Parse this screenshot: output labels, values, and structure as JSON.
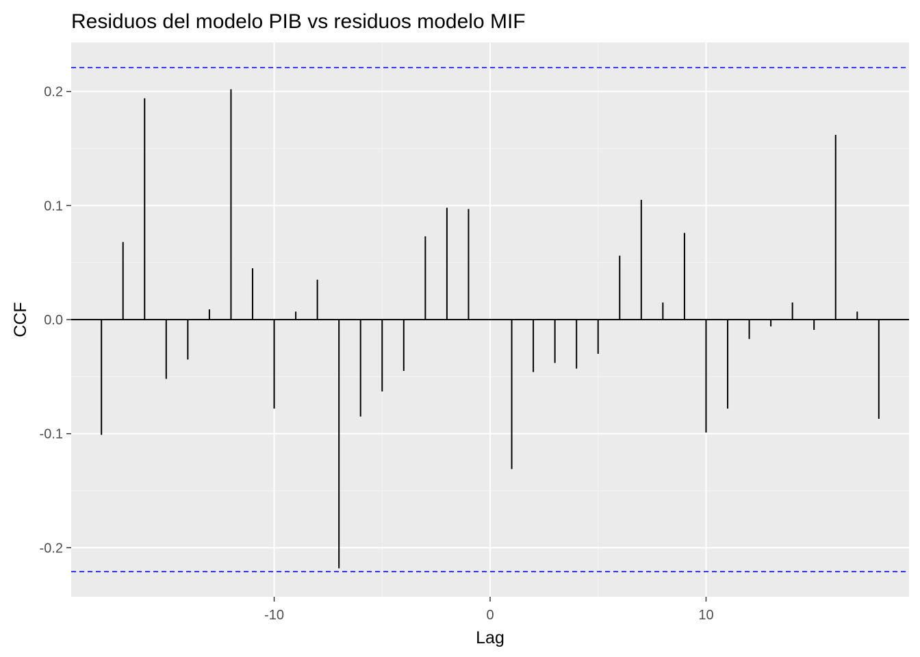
{
  "chart_data": {
    "type": "bar",
    "title": "Residuos del modelo PIB vs residuos modelo MIF",
    "xlabel": "Lag",
    "ylabel": "CCF",
    "xlim": [
      -19.4,
      19.4
    ],
    "ylim": [
      -0.243,
      0.243
    ],
    "x_ticks": [
      -10,
      0,
      10
    ],
    "x_tick_labels": [
      "-10",
      "0",
      "10"
    ],
    "y_ticks": [
      -0.2,
      -0.1,
      0.0,
      0.1,
      0.2
    ],
    "y_tick_labels": [
      "-0.2",
      "-0.1",
      "0.0",
      "0.1",
      "0.2"
    ],
    "confidence_limits": [
      0.221,
      -0.221
    ],
    "grid": true,
    "colors": {
      "panel": "#ebebeb",
      "grid_major": "#ffffff",
      "grid_minor": "#f5f5f5",
      "bars": "#000000",
      "confidence": "#0000ff"
    },
    "lags": [
      -18,
      -17,
      -16,
      -15,
      -14,
      -13,
      -12,
      -11,
      -10,
      -9,
      -8,
      -7,
      -6,
      -5,
      -4,
      -3,
      -2,
      -1,
      0,
      1,
      2,
      3,
      4,
      5,
      6,
      7,
      8,
      9,
      10,
      11,
      12,
      13,
      14,
      15,
      16,
      17,
      18
    ],
    "values": [
      -0.101,
      0.068,
      0.194,
      -0.052,
      -0.035,
      0.009,
      0.202,
      0.045,
      -0.078,
      0.007,
      0.035,
      -0.218,
      -0.085,
      -0.063,
      -0.045,
      0.073,
      0.098,
      0.097,
      0.0,
      -0.131,
      -0.046,
      -0.038,
      -0.043,
      -0.03,
      0.056,
      0.105,
      0.015,
      0.076,
      -0.099,
      -0.078,
      -0.017,
      -0.006,
      0.015,
      -0.009,
      0.162,
      0.007,
      -0.087
    ]
  }
}
